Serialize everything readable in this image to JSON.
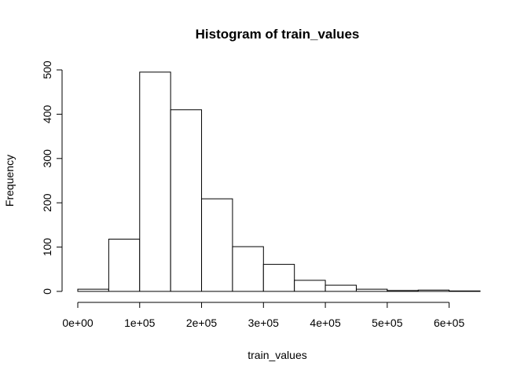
{
  "chart_data": {
    "type": "bar",
    "title": "Histogram of train_values",
    "xlabel": "train_values",
    "ylabel": "Frequency",
    "bins": [
      {
        "start": 0,
        "end": 50000,
        "count": 5
      },
      {
        "start": 50000,
        "end": 100000,
        "count": 118
      },
      {
        "start": 100000,
        "end": 150000,
        "count": 495
      },
      {
        "start": 150000,
        "end": 200000,
        "count": 410
      },
      {
        "start": 200000,
        "end": 250000,
        "count": 209
      },
      {
        "start": 250000,
        "end": 300000,
        "count": 101
      },
      {
        "start": 300000,
        "end": 350000,
        "count": 61
      },
      {
        "start": 350000,
        "end": 400000,
        "count": 25
      },
      {
        "start": 400000,
        "end": 450000,
        "count": 14
      },
      {
        "start": 450000,
        "end": 500000,
        "count": 5
      },
      {
        "start": 500000,
        "end": 550000,
        "count": 2
      },
      {
        "start": 550000,
        "end": 600000,
        "count": 3
      },
      {
        "start": 600000,
        "end": 650000,
        "count": 1
      }
    ],
    "xlim": [
      0,
      650000
    ],
    "ylim": [
      0,
      500
    ],
    "x_ticks": [
      {
        "value": 0,
        "label": "0e+00"
      },
      {
        "value": 100000,
        "label": "1e+05"
      },
      {
        "value": 200000,
        "label": "2e+05"
      },
      {
        "value": 300000,
        "label": "3e+05"
      },
      {
        "value": 400000,
        "label": "4e+05"
      },
      {
        "value": 500000,
        "label": "5e+05"
      },
      {
        "value": 600000,
        "label": "6e+05"
      }
    ],
    "y_ticks": [
      {
        "value": 0,
        "label": "0"
      },
      {
        "value": 100,
        "label": "100"
      },
      {
        "value": 200,
        "label": "200"
      },
      {
        "value": 300,
        "label": "300"
      },
      {
        "value": 400,
        "label": "400"
      },
      {
        "value": 500,
        "label": "500"
      }
    ],
    "grid": false,
    "colors": {
      "bar_fill": "#ffffff",
      "bar_stroke": "#000000"
    }
  }
}
